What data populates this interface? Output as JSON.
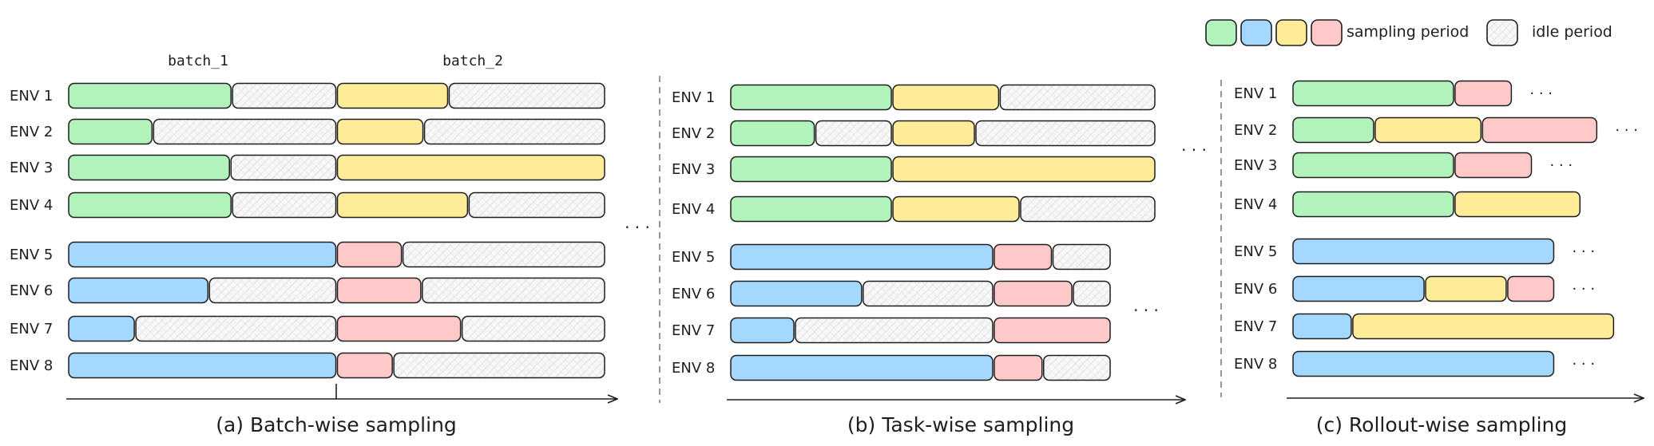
{
  "colors": {
    "green": "#b2f2bb",
    "blue": "#a5d8ff",
    "yellow": "#ffec99",
    "pink": "#ffc9c9",
    "idle": "#f7f7f7",
    "stroke": "#1e1e1e",
    "divider": "#8c8c96"
  },
  "legend": {
    "sampling_label": "sampling period",
    "idle_label": "idle period",
    "sampling_colors": [
      "green",
      "blue",
      "yellow",
      "pink"
    ]
  },
  "batch_labels": [
    "batch_1",
    "batch_2"
  ],
  "ellipsis": "· · ·",
  "panels": [
    {
      "caption": "(a) Batch-wise sampling",
      "rows": [
        {
          "label": "ENV  1",
          "segments": [
            {
              "c": "green",
              "w": 0.305
            },
            {
              "c": "idle",
              "w": 0.195
            },
            {
              "c": "yellow",
              "w": 0.208
            },
            {
              "c": "idle",
              "w": 0.292
            }
          ]
        },
        {
          "label": "ENV  2",
          "segments": [
            {
              "c": "green",
              "w": 0.158
            },
            {
              "c": "idle",
              "w": 0.342
            },
            {
              "c": "yellow",
              "w": 0.162
            },
            {
              "c": "idle",
              "w": 0.338
            }
          ]
        },
        {
          "label": "ENV  3",
          "segments": [
            {
              "c": "green",
              "w": 0.302
            },
            {
              "c": "idle",
              "w": 0.198
            },
            {
              "c": "yellow",
              "w": 0.5
            }
          ]
        },
        {
          "label": "ENV  4",
          "segments": [
            {
              "c": "green",
              "w": 0.305
            },
            {
              "c": "idle",
              "w": 0.195
            },
            {
              "c": "yellow",
              "w": 0.245
            },
            {
              "c": "idle",
              "w": 0.255
            }
          ]
        },
        {
          "label": "ENV  5",
          "segments": [
            {
              "c": "blue",
              "w": 0.5
            },
            {
              "c": "pink",
              "w": 0.122
            },
            {
              "c": "idle",
              "w": 0.378
            }
          ]
        },
        {
          "label": "ENV  6",
          "segments": [
            {
              "c": "blue",
              "w": 0.262
            },
            {
              "c": "idle",
              "w": 0.238
            },
            {
              "c": "pink",
              "w": 0.158
            },
            {
              "c": "idle",
              "w": 0.342
            }
          ]
        },
        {
          "label": "ENV  7",
          "segments": [
            {
              "c": "blue",
              "w": 0.125
            },
            {
              "c": "idle",
              "w": 0.375
            },
            {
              "c": "pink",
              "w": 0.232
            },
            {
              "c": "idle",
              "w": 0.268
            }
          ]
        },
        {
          "label": "ENV  8",
          "segments": [
            {
              "c": "blue",
              "w": 0.5
            },
            {
              "c": "pink",
              "w": 0.105
            },
            {
              "c": "idle",
              "w": 0.395
            }
          ]
        }
      ]
    },
    {
      "caption": "(b) Task-wise sampling",
      "rows": [
        {
          "label": "ENV  1",
          "segments": [
            {
              "c": "green",
              "w": 0.381
            },
            {
              "c": "yellow",
              "w": 0.252
            },
            {
              "c": "idle",
              "w": 0.367
            }
          ]
        },
        {
          "label": "ENV  2",
          "segments": [
            {
              "c": "green",
              "w": 0.2
            },
            {
              "c": "idle",
              "w": 0.181
            },
            {
              "c": "yellow",
              "w": 0.195
            },
            {
              "c": "idle",
              "w": 0.424
            }
          ]
        },
        {
          "label": "ENV  3",
          "segments": [
            {
              "c": "green",
              "w": 0.381
            },
            {
              "c": "yellow",
              "w": 0.619
            }
          ]
        },
        {
          "label": "ENV  4",
          "segments": [
            {
              "c": "green",
              "w": 0.381
            },
            {
              "c": "yellow",
              "w": 0.3
            },
            {
              "c": "idle",
              "w": 0.319
            }
          ]
        },
        {
          "label": "ENV  5",
          "segments": [
            {
              "c": "blue",
              "w": 0.619
            },
            {
              "c": "pink",
              "w": 0.138
            },
            {
              "c": "idle",
              "w": 0.138
            }
          ]
        },
        {
          "label": "ENV  6",
          "segments": [
            {
              "c": "blue",
              "w": 0.311
            },
            {
              "c": "idle",
              "w": 0.308
            },
            {
              "c": "pink",
              "w": 0.186
            },
            {
              "c": "idle",
              "w": 0.09
            }
          ]
        },
        {
          "label": "ENV  7",
          "segments": [
            {
              "c": "blue",
              "w": 0.152
            },
            {
              "c": "idle",
              "w": 0.467
            },
            {
              "c": "pink",
              "w": 0.276
            }
          ]
        },
        {
          "label": "ENV  8",
          "segments": [
            {
              "c": "blue",
              "w": 0.619
            },
            {
              "c": "pink",
              "w": 0.116
            },
            {
              "c": "idle",
              "w": 0.16
            }
          ]
        }
      ]
    },
    {
      "caption": "(c) Rollout-wise sampling",
      "rows": [
        {
          "label": "ENV  1",
          "segments": [
            {
              "c": "green",
              "w": 0.501
            },
            {
              "c": "pink",
              "w": 0.179
            }
          ],
          "trail": true
        },
        {
          "label": "ENV  2",
          "segments": [
            {
              "c": "green",
              "w": 0.254
            },
            {
              "c": "yellow",
              "w": 0.332
            },
            {
              "c": "pink",
              "w": 0.358
            }
          ],
          "trail": true
        },
        {
          "label": "ENV  3",
          "segments": [
            {
              "c": "green",
              "w": 0.501
            },
            {
              "c": "pink",
              "w": 0.241
            }
          ],
          "trail": true
        },
        {
          "label": "ENV  4",
          "segments": [
            {
              "c": "green",
              "w": 0.501
            },
            {
              "c": "yellow",
              "w": 0.391
            }
          ],
          "trail": false
        },
        {
          "label": "ENV  5",
          "segments": [
            {
              "c": "blue",
              "w": 0.811
            }
          ],
          "trail": true
        },
        {
          "label": "ENV  6",
          "segments": [
            {
              "c": "blue",
              "w": 0.41
            },
            {
              "c": "yellow",
              "w": 0.254
            },
            {
              "c": "pink",
              "w": 0.147
            }
          ],
          "trail": true
        },
        {
          "label": "ENV  7",
          "segments": [
            {
              "c": "blue",
              "w": 0.185
            },
            {
              "c": "yellow",
              "w": 0.811
            }
          ],
          "trail": false
        },
        {
          "label": "ENV  8",
          "segments": [
            {
              "c": "blue",
              "w": 0.811
            }
          ],
          "trail": true
        }
      ]
    }
  ]
}
